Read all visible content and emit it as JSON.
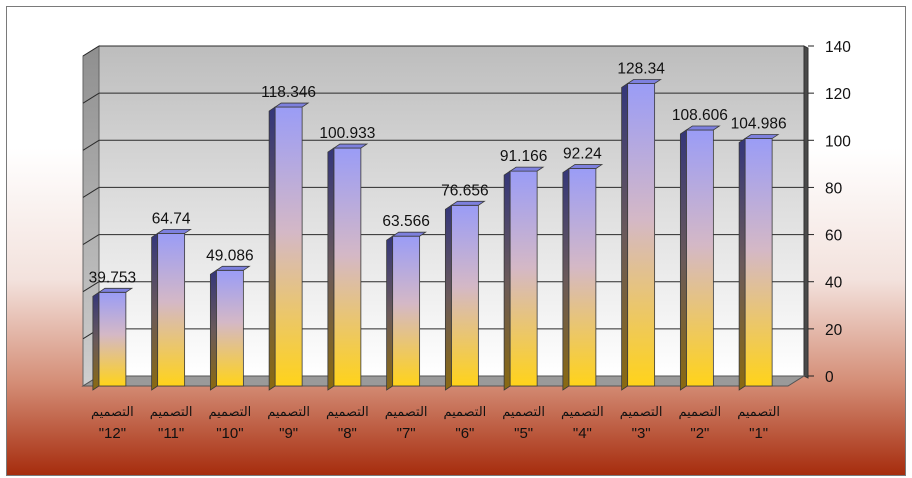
{
  "chart_data": {
    "type": "bar",
    "categories": [
      "التصميم \"1\"",
      "التصميم \"2\"",
      "التصميم \"3\"",
      "التصميم \"4\"",
      "التصميم \"5\"",
      "التصميم \"6\"",
      "التصميم \"7\"",
      "التصميم \"8\"",
      "التصميم \"9\"",
      "التصميم \"10\"",
      "التصميم \"11\"",
      "التصميم \"12\""
    ],
    "category_words": [
      "التصميم",
      "التصميم",
      "التصميم",
      "التصميم",
      "التصميم",
      "التصميم",
      "التصميم",
      "التصميم",
      "التصميم",
      "التصميم",
      "التصميم",
      "التصميم"
    ],
    "category_numbers": [
      "\"1\"",
      "\"2\"",
      "\"3\"",
      "\"4\"",
      "\"5\"",
      "\"6\"",
      "\"7\"",
      "\"8\"",
      "\"9\"",
      "\"10\"",
      "\"11\"",
      "\"12\""
    ],
    "values": [
      104.986,
      108.606,
      128.34,
      92.24,
      91.166,
      76.656,
      63.566,
      100.933,
      118.346,
      49.086,
      64.74,
      39.753
    ],
    "value_labels": [
      "104.986",
      "108.606",
      "128.34",
      "92.24",
      "91.166",
      "76.656",
      "63.566",
      "100.933",
      "118.346",
      "49.086",
      "64.74",
      "39.753"
    ],
    "ylim": [
      0,
      140
    ],
    "yticks": [
      "0",
      "20",
      "40",
      "60",
      "80",
      "100",
      "120",
      "140"
    ],
    "category_order": "right-to-left",
    "y_axis_position": "right",
    "grid": true,
    "three_d": true,
    "colors": {
      "bar_top": "#9a9cf6",
      "bar_bottom": "#ffd21a",
      "wall": "#c8c8c8",
      "background_top": "#ffffff",
      "background_bottom": "#a92e0f"
    }
  }
}
